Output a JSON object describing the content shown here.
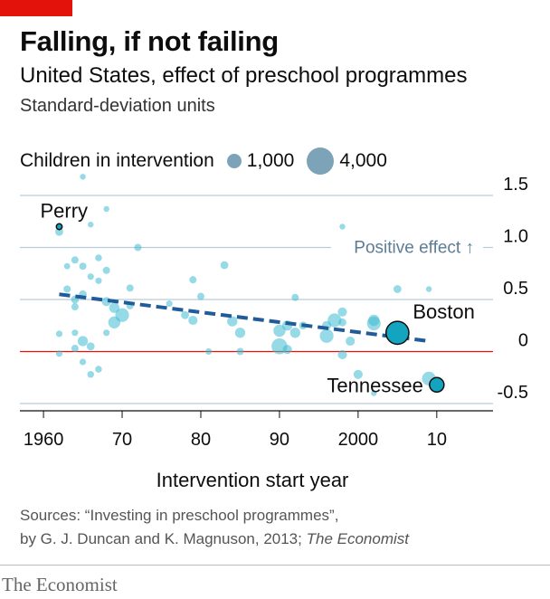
{
  "header": {
    "title": "Falling, if not failing",
    "subtitle": "United States, effect of preschool programmes",
    "units": "Standard-deviation units"
  },
  "legend": {
    "label": "Children in intervention",
    "small_label": "1,000",
    "large_label": "4,000"
  },
  "footer": {
    "sources_line1": "Sources: “Investing in preschool programmes”,",
    "sources_line2_plain": "by G. J. Duncan and K. Magnuson, 2013;",
    "sources_line2_italic": "The Economist",
    "brand": "The Economist"
  },
  "colors": {
    "brand_red": "#e3120b",
    "bubble": "#3ebcd2",
    "highlight": "#13a4bf",
    "trend": "#1f5c99",
    "grid": "#b9cbd6",
    "zero_line": "#e3120b"
  },
  "chart_data": {
    "type": "scatter",
    "xlabel": "Intervention start year",
    "ylabel": "",
    "xlim": [
      1957,
      2016
    ],
    "ylim": [
      -0.5,
      1.5
    ],
    "x_ticks": [
      {
        "value": 1960,
        "label": "1960"
      },
      {
        "value": 1970,
        "label": "70"
      },
      {
        "value": 1980,
        "label": "80"
      },
      {
        "value": 1990,
        "label": "90"
      },
      {
        "value": 2000,
        "label": "2000"
      },
      {
        "value": 2010,
        "label": "10"
      }
    ],
    "y_ticks": [
      {
        "value": 1.5,
        "label": "1.5"
      },
      {
        "value": 1.0,
        "label": "1.0"
      },
      {
        "value": 0.5,
        "label": "0.5"
      },
      {
        "value": 0,
        "label": "0"
      },
      {
        "value": -0.5,
        "label": "-0.5"
      }
    ],
    "grid": true,
    "size_legend": {
      "label": "Children in intervention",
      "sizes": [
        1000,
        4000
      ]
    },
    "annotation": "Positive effect ↑",
    "trend": {
      "x": [
        1962,
        2009
      ],
      "y": [
        0.55,
        0.1
      ]
    },
    "highlighted": [
      {
        "name": "Perry",
        "x": 1962,
        "y": 1.2,
        "n": 120
      },
      {
        "name": "Boston",
        "x": 2005,
        "y": 0.18,
        "n": 2500
      },
      {
        "name": "Tennessee",
        "x": 2010,
        "y": -0.32,
        "n": 1000
      }
    ],
    "points": [
      {
        "x": 1965,
        "y": 1.68,
        "n": 120
      },
      {
        "x": 1968,
        "y": 1.37,
        "n": 120
      },
      {
        "x": 1962,
        "y": 1.15,
        "n": 300
      },
      {
        "x": 1966,
        "y": 1.22,
        "n": 150
      },
      {
        "x": 1972,
        "y": 1.0,
        "n": 250
      },
      {
        "x": 1964,
        "y": 0.88,
        "n": 250
      },
      {
        "x": 1967,
        "y": 0.9,
        "n": 220
      },
      {
        "x": 1963,
        "y": 0.82,
        "n": 180
      },
      {
        "x": 1965,
        "y": 0.82,
        "n": 250
      },
      {
        "x": 1968,
        "y": 0.78,
        "n": 250
      },
      {
        "x": 1966,
        "y": 0.72,
        "n": 200
      },
      {
        "x": 1967,
        "y": 0.68,
        "n": 200
      },
      {
        "x": 1963,
        "y": 0.6,
        "n": 250
      },
      {
        "x": 1971,
        "y": 0.61,
        "n": 250
      },
      {
        "x": 1964,
        "y": 0.5,
        "n": 300
      },
      {
        "x": 1965,
        "y": 0.55,
        "n": 300
      },
      {
        "x": 1968,
        "y": 0.48,
        "n": 400
      },
      {
        "x": 1969,
        "y": 0.42,
        "n": 500
      },
      {
        "x": 1970,
        "y": 0.35,
        "n": 900
      },
      {
        "x": 1971,
        "y": 0.44,
        "n": 250
      },
      {
        "x": 1969,
        "y": 0.28,
        "n": 700
      },
      {
        "x": 1964,
        "y": 0.43,
        "n": 250
      },
      {
        "x": 1962,
        "y": 0.17,
        "n": 200
      },
      {
        "x": 1964,
        "y": 0.18,
        "n": 200
      },
      {
        "x": 1965,
        "y": 0.1,
        "n": 500
      },
      {
        "x": 1966,
        "y": 0.05,
        "n": 300
      },
      {
        "x": 1964,
        "y": 0.03,
        "n": 250
      },
      {
        "x": 1962,
        "y": -0.02,
        "n": 200
      },
      {
        "x": 1965,
        "y": -0.1,
        "n": 200
      },
      {
        "x": 1966,
        "y": -0.22,
        "n": 220
      },
      {
        "x": 1967,
        "y": -0.17,
        "n": 220
      },
      {
        "x": 1968,
        "y": 0.18,
        "n": 200
      },
      {
        "x": 1976,
        "y": 0.46,
        "n": 200
      },
      {
        "x": 1979,
        "y": 0.69,
        "n": 250
      },
      {
        "x": 1980,
        "y": 0.53,
        "n": 250
      },
      {
        "x": 1983,
        "y": 0.83,
        "n": 300
      },
      {
        "x": 1978,
        "y": 0.35,
        "n": 300
      },
      {
        "x": 1979,
        "y": 0.3,
        "n": 400
      },
      {
        "x": 1984,
        "y": 0.29,
        "n": 500
      },
      {
        "x": 1985,
        "y": 0.18,
        "n": 500
      },
      {
        "x": 1981,
        "y": 0.0,
        "n": 200
      },
      {
        "x": 1985,
        "y": 0.0,
        "n": 250
      },
      {
        "x": 1990,
        "y": 0.2,
        "n": 700
      },
      {
        "x": 1991,
        "y": 0.25,
        "n": 500
      },
      {
        "x": 1992,
        "y": 0.52,
        "n": 250
      },
      {
        "x": 1992,
        "y": 0.18,
        "n": 500
      },
      {
        "x": 1990,
        "y": 0.05,
        "n": 1200
      },
      {
        "x": 1991,
        "y": 0.02,
        "n": 400
      },
      {
        "x": 1993,
        "y": 0.25,
        "n": 300
      },
      {
        "x": 1996,
        "y": 0.25,
        "n": 400
      },
      {
        "x": 1997,
        "y": 0.3,
        "n": 900
      },
      {
        "x": 1998,
        "y": 0.38,
        "n": 400
      },
      {
        "x": 1996,
        "y": 0.15,
        "n": 900
      },
      {
        "x": 1998,
        "y": 0.28,
        "n": 300
      },
      {
        "x": 1999,
        "y": 0.1,
        "n": 400
      },
      {
        "x": 1998,
        "y": -0.03,
        "n": 400
      },
      {
        "x": 1998,
        "y": 1.2,
        "n": 150
      },
      {
        "x": 2000,
        "y": -0.22,
        "n": 400
      },
      {
        "x": 2002,
        "y": 0.3,
        "n": 600
      },
      {
        "x": 2002,
        "y": 0.27,
        "n": 900
      },
      {
        "x": 2005,
        "y": 0.6,
        "n": 300
      },
      {
        "x": 2009,
        "y": 0.6,
        "n": 150
      },
      {
        "x": 2009,
        "y": -0.26,
        "n": 900
      },
      {
        "x": 2002,
        "y": -0.4,
        "n": 120
      }
    ]
  }
}
